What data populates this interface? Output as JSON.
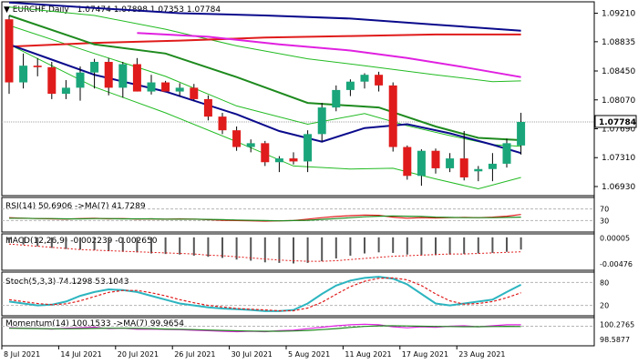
{
  "colors": {
    "bull": "#1aa67a",
    "bear": "#e01b1b",
    "ma_blue": "#0a0a8c",
    "ma_red": "#e01b1b",
    "ma_magenta": "#e020e0",
    "ma_green": "#1e8a1e",
    "bollinger": "#22bb22",
    "stoch_main": "#2cb5c0",
    "price_line": "#a0a0a0",
    "grid": "#b4b4b4",
    "last_price_bg": "#ffffff"
  },
  "header": {
    "symbol_period": "EURCHF,Daily",
    "ohlc": "1.07474 1.07898 1.07353 1.07784"
  },
  "last_price_label": "1.07784",
  "chart_data": [
    {
      "type": "candlestick",
      "title": "EURCHF,Daily",
      "x_labels": [
        "8 Jul 2021",
        "14 Jul 2021",
        "20 Jul 2021",
        "26 Jul 2021",
        "30 Jul 2021",
        "5 Aug 2021",
        "11 Aug 2021",
        "17 Aug 2021",
        "23 Aug 2021"
      ],
      "y_ticks": [
        "1.09210",
        "1.08835",
        "1.08450",
        "1.08070",
        "1.07690",
        "1.07310",
        "1.06930"
      ],
      "y_tick_values": [
        1.0921,
        1.08835,
        1.0845,
        1.0807,
        1.0769,
        1.0731,
        1.0693
      ],
      "ylim": [
        1.0681,
        1.0936
      ],
      "candles": [
        {
          "o": 1.0913,
          "h": 1.0918,
          "l": 1.0815,
          "c": 1.083
        },
        {
          "o": 1.083,
          "h": 1.0868,
          "l": 1.0822,
          "c": 1.0852
        },
        {
          "o": 1.0852,
          "h": 1.0862,
          "l": 1.0838,
          "c": 1.085
        },
        {
          "o": 1.085,
          "h": 1.0857,
          "l": 1.0808,
          "c": 1.0815
        },
        {
          "o": 1.0815,
          "h": 1.0833,
          "l": 1.0808,
          "c": 1.0823
        },
        {
          "o": 1.0823,
          "h": 1.0851,
          "l": 1.0806,
          "c": 1.0843
        },
        {
          "o": 1.0843,
          "h": 1.0861,
          "l": 1.0822,
          "c": 1.0857
        },
        {
          "o": 1.0857,
          "h": 1.0862,
          "l": 1.0813,
          "c": 1.0823
        },
        {
          "o": 1.0823,
          "h": 1.0857,
          "l": 1.081,
          "c": 1.0854
        },
        {
          "o": 1.0854,
          "h": 1.0862,
          "l": 1.0818,
          "c": 1.0818
        },
        {
          "o": 1.0818,
          "h": 1.084,
          "l": 1.0814,
          "c": 1.083
        },
        {
          "o": 1.083,
          "h": 1.0832,
          "l": 1.0818,
          "c": 1.0818
        },
        {
          "o": 1.0818,
          "h": 1.0829,
          "l": 1.0812,
          "c": 1.0823
        },
        {
          "o": 1.0823,
          "h": 1.0828,
          "l": 1.0806,
          "c": 1.0808
        },
        {
          "o": 1.0808,
          "h": 1.0813,
          "l": 1.078,
          "c": 1.0785
        },
        {
          "o": 1.0785,
          "h": 1.079,
          "l": 1.0762,
          "c": 1.0767
        },
        {
          "o": 1.0767,
          "h": 1.0772,
          "l": 1.074,
          "c": 1.0745
        },
        {
          "o": 1.0745,
          "h": 1.0755,
          "l": 1.0738,
          "c": 1.075
        },
        {
          "o": 1.075,
          "h": 1.0753,
          "l": 1.072,
          "c": 1.0725
        },
        {
          "o": 1.0725,
          "h": 1.0733,
          "l": 1.0712,
          "c": 1.073
        },
        {
          "o": 1.073,
          "h": 1.0738,
          "l": 1.0722,
          "c": 1.0726
        },
        {
          "o": 1.0726,
          "h": 1.0767,
          "l": 1.0712,
          "c": 1.0762
        },
        {
          "o": 1.0762,
          "h": 1.0803,
          "l": 1.0752,
          "c": 1.0797
        },
        {
          "o": 1.0797,
          "h": 1.0826,
          "l": 1.0792,
          "c": 1.082
        },
        {
          "o": 1.082,
          "h": 1.0834,
          "l": 1.0812,
          "c": 1.0831
        },
        {
          "o": 1.0831,
          "h": 1.0842,
          "l": 1.0822,
          "c": 1.084
        },
        {
          "o": 1.084,
          "h": 1.0844,
          "l": 1.0818,
          "c": 1.0826
        },
        {
          "o": 1.0826,
          "h": 1.083,
          "l": 1.0739,
          "c": 1.0745
        },
        {
          "o": 1.0745,
          "h": 1.0747,
          "l": 1.0702,
          "c": 1.0707
        },
        {
          "o": 1.0707,
          "h": 1.0742,
          "l": 1.0694,
          "c": 1.074
        },
        {
          "o": 1.074,
          "h": 1.0743,
          "l": 1.071,
          "c": 1.0717
        },
        {
          "o": 1.0717,
          "h": 1.0737,
          "l": 1.0712,
          "c": 1.073
        },
        {
          "o": 1.073,
          "h": 1.0766,
          "l": 1.0701,
          "c": 1.0705
        },
        {
          "o": 1.0713,
          "h": 1.072,
          "l": 1.07,
          "c": 1.0716
        },
        {
          "o": 1.0716,
          "h": 1.0737,
          "l": 1.07,
          "c": 1.0723
        },
        {
          "o": 1.0723,
          "h": 1.0756,
          "l": 1.0718,
          "c": 1.075
        },
        {
          "o": 1.0747,
          "h": 1.079,
          "l": 1.0735,
          "c": 1.0778
        }
      ],
      "moving_averages": [
        {
          "color_key": "ma_blue",
          "points": [
            [
              0,
              1.0935
            ],
            [
              6,
              1.0928
            ],
            [
              12,
              1.0921
            ],
            [
              18,
              1.0918
            ],
            [
              24,
              1.0914
            ],
            [
              30,
              1.0906
            ],
            [
              36,
              1.0898
            ]
          ]
        },
        {
          "color_key": "ma_red",
          "points": [
            [
              0,
              1.0877
            ],
            [
              6,
              1.0882
            ],
            [
              12,
              1.0885
            ],
            [
              18,
              1.0889
            ],
            [
              24,
              1.0891
            ],
            [
              30,
              1.0893
            ],
            [
              36,
              1.0893
            ]
          ]
        },
        {
          "color_key": "ma_magenta",
          "points": [
            [
              9,
              1.0895
            ],
            [
              14,
              1.089
            ],
            [
              19,
              1.088
            ],
            [
              24,
              1.0872
            ],
            [
              28,
              1.0862
            ],
            [
              32,
              1.085
            ],
            [
              36,
              1.0837
            ]
          ]
        },
        {
          "color_key": "ma_green",
          "points": [
            [
              0,
              1.0918
            ],
            [
              6,
              1.088
            ],
            [
              11,
              1.0868
            ],
            [
              16,
              1.0837
            ],
            [
              21,
              1.0803
            ],
            [
              26,
              1.0797
            ],
            [
              30,
              1.0772
            ],
            [
              33,
              1.0757
            ],
            [
              36,
              1.0754
            ]
          ]
        },
        {
          "color_key": "ma_blue",
          "points": [
            [
              0,
              1.088
            ],
            [
              3,
              1.086
            ],
            [
              6,
              1.084
            ],
            [
              11,
              1.0818
            ],
            [
              16,
              1.0788
            ],
            [
              19,
              1.0766
            ],
            [
              22,
              1.0752
            ],
            [
              25,
              1.077
            ],
            [
              28,
              1.0775
            ],
            [
              31,
              1.0763
            ],
            [
              34,
              1.0748
            ],
            [
              36,
              1.0737
            ]
          ]
        }
      ],
      "bollinger": [
        {
          "points": [
            [
              0,
              1.0929
            ],
            [
              6,
              1.0918
            ],
            [
              11,
              1.09
            ],
            [
              16,
              1.0878
            ],
            [
              21,
              1.0861
            ],
            [
              25,
              1.0852
            ],
            [
              30,
              1.084
            ],
            [
              34,
              1.0831
            ],
            [
              36,
              1.0832
            ]
          ]
        },
        {
          "points": [
            [
              0,
              1.0905
            ],
            [
              6,
              1.0868
            ],
            [
              11,
              1.0838
            ],
            [
              16,
              1.0799
            ],
            [
              21,
              1.0775
            ],
            [
              25,
              1.0789
            ],
            [
              28,
              1.0773
            ],
            [
              31,
              1.076
            ],
            [
              34,
              1.0748
            ],
            [
              36,
              1.0746
            ]
          ]
        },
        {
          "points": [
            [
              0,
              1.088
            ],
            [
              6,
              1.0824
            ],
            [
              11,
              1.079
            ],
            [
              16,
              1.0752
            ],
            [
              20,
              1.072
            ],
            [
              24,
              1.0716
            ],
            [
              27,
              1.0717
            ],
            [
              30,
              1.0703
            ],
            [
              33,
              1.069
            ],
            [
              36,
              1.0705
            ]
          ]
        }
      ]
    },
    {
      "type": "line",
      "title": "RSI(14) 50.6906 ->MA(7) 41.7289",
      "y_ticks": [
        "70",
        "30"
      ],
      "ylim": [
        0,
        100
      ],
      "levels": [
        70,
        30
      ],
      "series": [
        {
          "color_key": "ma_red",
          "values": [
            40,
            38,
            37,
            36,
            35,
            37,
            38,
            36,
            37,
            35,
            36,
            35,
            36,
            35,
            33,
            31,
            30,
            29,
            28,
            29,
            30,
            35,
            40,
            44,
            47,
            49,
            48,
            42,
            38,
            40,
            39,
            40,
            41,
            40,
            42,
            45,
            51
          ]
        },
        {
          "color_key": "ma_green",
          "values": [
            38,
            38,
            37,
            37,
            36,
            36,
            37,
            37,
            36,
            36,
            36,
            35,
            35,
            35,
            34,
            33,
            32,
            31,
            30,
            29,
            30,
            31,
            34,
            37,
            40,
            43,
            45,
            46,
            45,
            44,
            42,
            41,
            40,
            40,
            40,
            41,
            42
          ]
        }
      ]
    },
    {
      "type": "bar",
      "title": "MACD(12,26,9) -0.002239 -0.002650",
      "y_ticks": [
        "0.00005",
        "-0.00476"
      ],
      "ylim": [
        -0.0056,
        0.0003
      ],
      "values": [
        -0.001,
        -0.0013,
        -0.0016,
        -0.0019,
        -0.0021,
        -0.0022,
        -0.0023,
        -0.0025,
        -0.0026,
        -0.0027,
        -0.0029,
        -0.003,
        -0.0031,
        -0.0033,
        -0.0035,
        -0.0037,
        -0.004,
        -0.0042,
        -0.0045,
        -0.0046,
        -0.0047,
        -0.0046,
        -0.0043,
        -0.0038,
        -0.0033,
        -0.0029,
        -0.0027,
        -0.0028,
        -0.0031,
        -0.0032,
        -0.0032,
        -0.0031,
        -0.003,
        -0.0029,
        -0.0028,
        -0.0026,
        -0.0022
      ],
      "signal": [
        -0.0012,
        -0.0014,
        -0.0016,
        -0.0018,
        -0.002,
        -0.0022,
        -0.0023,
        -0.0024,
        -0.0025,
        -0.0026,
        -0.0027,
        -0.0028,
        -0.0029,
        -0.003,
        -0.0032,
        -0.0033,
        -0.0035,
        -0.0037,
        -0.0039,
        -0.0041,
        -0.0042,
        -0.0043,
        -0.0043,
        -0.0042,
        -0.004,
        -0.0038,
        -0.0036,
        -0.0034,
        -0.0033,
        -0.0032,
        -0.0031,
        -0.003,
        -0.003,
        -0.0029,
        -0.0028,
        -0.0027,
        -0.0026
      ]
    },
    {
      "type": "line",
      "title": "Stoch(5,3,3) 74.1298 53.1043",
      "y_ticks": [
        "80",
        "20"
      ],
      "ylim": [
        0,
        100
      ],
      "levels": [
        80,
        20
      ],
      "series": [
        {
          "color_key": "stoch_main",
          "values": [
            30,
            25,
            20,
            22,
            30,
            45,
            55,
            62,
            60,
            55,
            45,
            35,
            25,
            20,
            15,
            12,
            10,
            8,
            5,
            5,
            8,
            25,
            50,
            72,
            85,
            92,
            95,
            90,
            75,
            50,
            25,
            20,
            25,
            30,
            35,
            55,
            74
          ]
        },
        {
          "color_key": "ma_red",
          "values": [
            35,
            30,
            25,
            22,
            24,
            32,
            43,
            54,
            59,
            59,
            53,
            45,
            35,
            27,
            20,
            16,
            12,
            10,
            8,
            6,
            6,
            13,
            28,
            49,
            69,
            83,
            91,
            92,
            87,
            72,
            50,
            32,
            23,
            25,
            30,
            40,
            53
          ]
        }
      ]
    },
    {
      "type": "line",
      "title": "Momentum(14) 100.1533 ->MA(7) 99.9654",
      "y_ticks": [
        "100.2765",
        "98.5877"
      ],
      "ylim": [
        98.3,
        100.6
      ],
      "levels": [
        100
      ],
      "series": [
        {
          "color_key": "ma_magenta",
          "values": [
            99.85,
            99.8,
            99.78,
            99.72,
            99.8,
            99.85,
            99.9,
            99.75,
            99.8,
            99.7,
            99.72,
            99.68,
            99.65,
            99.6,
            99.55,
            99.5,
            99.45,
            99.5,
            99.45,
            99.55,
            99.6,
            99.75,
            99.9,
            100.05,
            100.15,
            100.2,
            100.15,
            99.95,
            99.85,
            99.95,
            99.9,
            100.0,
            100.05,
            99.95,
            100.05,
            100.15,
            100.15
          ]
        },
        {
          "color_key": "ma_green",
          "values": [
            99.8,
            99.78,
            99.76,
            99.74,
            99.74,
            99.76,
            99.78,
            99.8,
            99.8,
            99.78,
            99.76,
            99.72,
            99.7,
            99.66,
            99.62,
            99.58,
            99.54,
            99.51,
            99.5,
            99.5,
            99.52,
            99.58,
            99.66,
            99.76,
            99.88,
            99.98,
            100.04,
            100.05,
            100.03,
            100.0,
            99.98,
            99.97,
            99.96,
            99.96,
            99.97,
            99.99,
            99.97
          ]
        }
      ]
    }
  ]
}
